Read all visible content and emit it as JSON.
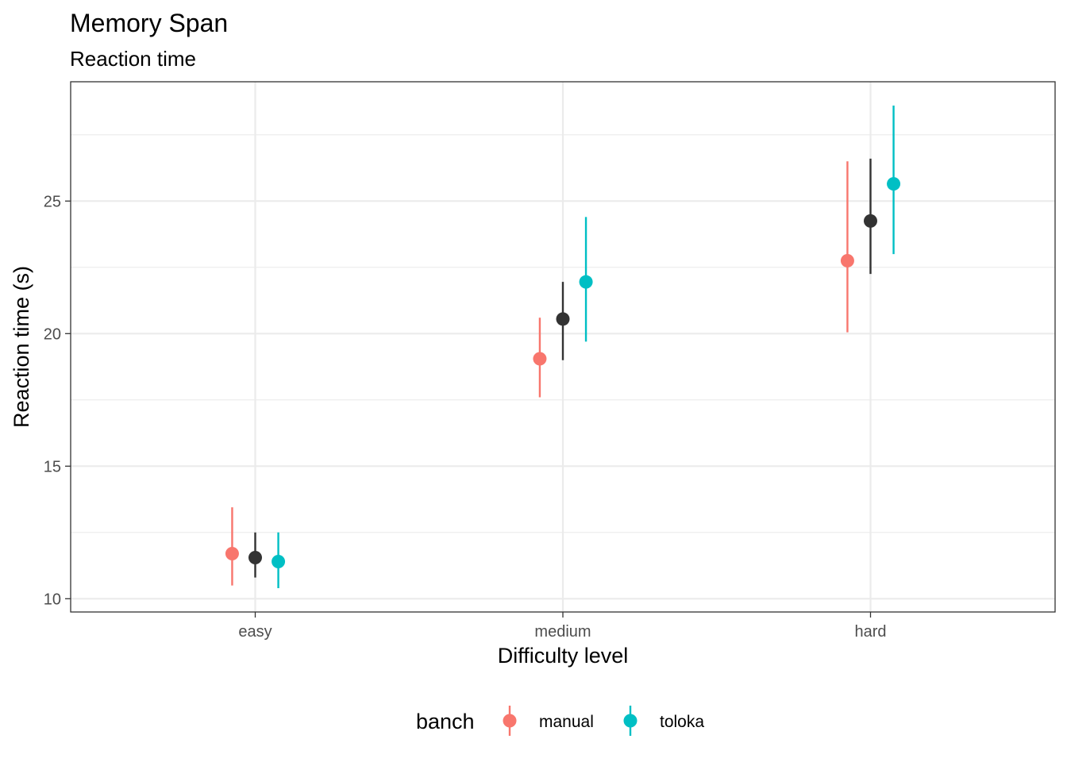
{
  "chart_data": {
    "type": "scatter",
    "subtype": "pointrange",
    "title": "Memory Span",
    "subtitle": "Reaction time",
    "xlabel": "Difficulty level",
    "ylabel": "Reaction time (s)",
    "categories": [
      "easy",
      "medium",
      "hard"
    ],
    "ylim": [
      9.5,
      29.5
    ],
    "yticks": [
      10,
      15,
      20,
      25
    ],
    "grid": true,
    "legend": {
      "title": "banch",
      "position": "bottom",
      "entries": [
        {
          "label": "manual",
          "color": "#F8766D"
        },
        {
          "label": "toloka",
          "color": "#00BFC4"
        }
      ]
    },
    "series": [
      {
        "key": "manual",
        "color": "#F8766D",
        "offset": -1,
        "points": [
          {
            "y": 11.7,
            "low": 10.5,
            "high": 13.45
          },
          {
            "y": 19.05,
            "low": 17.6,
            "high": 20.6
          },
          {
            "y": 22.75,
            "low": 20.05,
            "high": 26.5
          }
        ]
      },
      {
        "key": "overall",
        "color": "#333333",
        "offset": 0,
        "points": [
          {
            "y": 11.55,
            "low": 10.8,
            "high": 12.5
          },
          {
            "y": 20.55,
            "low": 19.0,
            "high": 21.95
          },
          {
            "y": 24.25,
            "low": 22.25,
            "high": 26.6
          }
        ]
      },
      {
        "key": "toloka",
        "color": "#00BFC4",
        "offset": 1,
        "points": [
          {
            "y": 11.4,
            "low": 10.4,
            "high": 12.5
          },
          {
            "y": 21.95,
            "low": 19.7,
            "high": 24.4
          },
          {
            "y": 25.65,
            "low": 23.0,
            "high": 28.6
          }
        ]
      }
    ]
  }
}
